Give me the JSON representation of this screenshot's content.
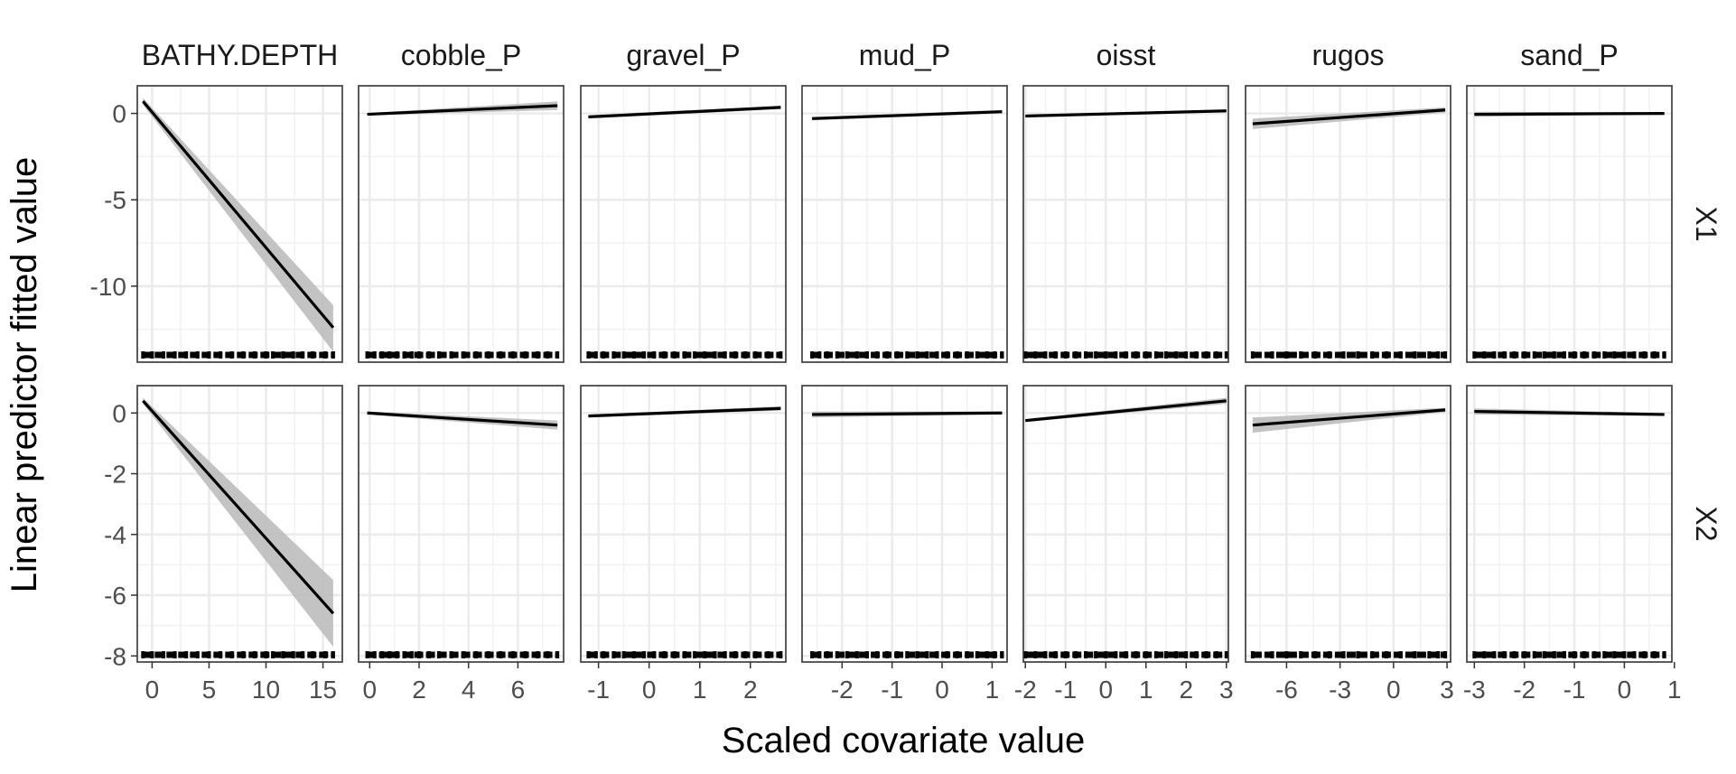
{
  "chart_data": {
    "type": "line",
    "xlabel": "Scaled covariate value",
    "ylabel": "Linear predictor fitted value",
    "facet_columns": [
      "BATHY.DEPTH",
      "cobble_P",
      "gravel_P",
      "mud_P",
      "oisst",
      "rugos",
      "sand_P"
    ],
    "facet_rows": [
      "X1",
      "X2"
    ],
    "grid": true,
    "rows": [
      {
        "label": "X1",
        "ylim": [
          -14.4,
          1.6
        ],
        "yticks": [
          0,
          -5,
          -10
        ]
      },
      {
        "label": "X2",
        "ylim": [
          -8.2,
          0.9
        ],
        "yticks": [
          0,
          -2,
          -4,
          -6,
          -8
        ]
      }
    ],
    "columns": [
      {
        "label": "BATHY.DEPTH",
        "xlim": [
          -1.3,
          16.7
        ],
        "xticks": [
          0,
          5,
          10,
          15
        ]
      },
      {
        "label": "cobble_P",
        "xlim": [
          -0.45,
          7.85
        ],
        "xticks": [
          0,
          2,
          4,
          6
        ]
      },
      {
        "label": "gravel_P",
        "xlim": [
          -1.35,
          2.7
        ],
        "xticks": [
          -1,
          0,
          1,
          2
        ]
      },
      {
        "label": "mud_P",
        "xlim": [
          -2.8,
          1.3
        ],
        "xticks": [
          -2,
          -1,
          0,
          1
        ]
      },
      {
        "label": "oisst",
        "xlim": [
          -2.05,
          3.05
        ],
        "xticks": [
          -2,
          -1,
          0,
          1,
          2,
          3
        ]
      },
      {
        "label": "rugos",
        "xlim": [
          -8.3,
          3.2
        ],
        "xticks": [
          -6,
          -3,
          0,
          3
        ]
      },
      {
        "label": "sand_P",
        "xlim": [
          -3.15,
          0.95
        ],
        "xticks": [
          -3,
          -2,
          -1,
          0,
          1
        ]
      }
    ],
    "panels": [
      {
        "row": "X1",
        "column": "BATHY.DEPTH",
        "x": [
          -0.8,
          15.9
        ],
        "fit": [
          0.7,
          -12.4
        ],
        "lower": [
          0.5,
          -13.8
        ],
        "upper": [
          0.9,
          -11.1
        ],
        "rug": [
          -0.8,
          0,
          1,
          2,
          3,
          4,
          5,
          6,
          7,
          8,
          9,
          10,
          10.6,
          11.5,
          12.4,
          13.2,
          14.1,
          15.2,
          15.9
        ]
      },
      {
        "row": "X1",
        "column": "cobble_P",
        "x": [
          -0.1,
          7.6
        ],
        "fit": [
          -0.05,
          0.45
        ],
        "lower": [
          -0.12,
          0.2
        ],
        "upper": [
          0.02,
          0.7
        ],
        "rug": [
          -0.1,
          0.2,
          0.5,
          0.8,
          1.1,
          1.4,
          1.7,
          2.0,
          2.4,
          2.8,
          3.3,
          3.8,
          4.3,
          4.8,
          5.3,
          5.8,
          6.3,
          6.8,
          7.2,
          7.6
        ]
      },
      {
        "row": "X1",
        "column": "gravel_P",
        "x": [
          -1.2,
          2.6
        ],
        "fit": [
          -0.2,
          0.35
        ],
        "lower": [
          -0.3,
          0.25
        ],
        "upper": [
          -0.1,
          0.45
        ],
        "rug": [
          -1.2,
          -1.05,
          -0.9,
          -0.7,
          -0.5,
          -0.3,
          -0.1,
          0.1,
          0.3,
          0.5,
          0.7,
          0.9,
          1.1,
          1.3,
          1.5,
          1.7,
          1.9,
          2.1,
          2.35,
          2.6
        ]
      },
      {
        "row": "X1",
        "column": "mud_P",
        "x": [
          -2.6,
          1.2
        ],
        "fit": [
          -0.3,
          0.1
        ],
        "lower": [
          -0.4,
          0.0
        ],
        "upper": [
          -0.2,
          0.2
        ],
        "rug": [
          -2.6,
          -2.45,
          -2.3,
          -2.1,
          -1.9,
          -1.7,
          -1.5,
          -1.3,
          -1.1,
          -0.9,
          -0.7,
          -0.5,
          -0.3,
          -0.1,
          0.1,
          0.3,
          0.5,
          0.7,
          0.9,
          1.05,
          1.2
        ]
      },
      {
        "row": "X1",
        "column": "oisst",
        "x": [
          -2.0,
          3.0
        ],
        "fit": [
          -0.15,
          0.15
        ],
        "lower": [
          -0.22,
          0.08
        ],
        "upper": [
          -0.08,
          0.22
        ],
        "rug": [
          -2.0,
          -1.75,
          -1.5,
          -1.25,
          -1.0,
          -0.75,
          -0.5,
          -0.25,
          0,
          0.25,
          0.5,
          0.75,
          1.0,
          1.25,
          1.5,
          1.75,
          2.0,
          2.25,
          2.5,
          2.75,
          3.0
        ]
      },
      {
        "row": "X1",
        "column": "rugos",
        "x": [
          -7.9,
          2.9
        ],
        "fit": [
          -0.6,
          0.2
        ],
        "lower": [
          -0.9,
          0.05
        ],
        "upper": [
          -0.3,
          0.35
        ],
        "rug": [
          -7.9,
          -6.8,
          -6.0,
          -5.2,
          -4.4,
          -3.6,
          -2.8,
          -2.0,
          -1.2,
          -0.4,
          0.4,
          1.2,
          2.0,
          2.5,
          2.9
        ]
      },
      {
        "row": "X1",
        "column": "sand_P",
        "x": [
          -3.0,
          0.8
        ],
        "fit": [
          -0.05,
          0.0
        ],
        "lower": [
          -0.2,
          -0.05
        ],
        "upper": [
          0.1,
          0.05
        ],
        "rug": [
          -3.0,
          -2.8,
          -2.6,
          -2.4,
          -2.2,
          -2.0,
          -1.8,
          -1.6,
          -1.4,
          -1.2,
          -1.0,
          -0.8,
          -0.6,
          -0.4,
          -0.2,
          0,
          0.2,
          0.4,
          0.6,
          0.8
        ]
      },
      {
        "row": "X2",
        "column": "BATHY.DEPTH",
        "x": [
          -0.8,
          15.9
        ],
        "fit": [
          0.4,
          -6.6
        ],
        "lower": [
          0.3,
          -7.7
        ],
        "upper": [
          0.5,
          -5.5
        ],
        "rug": [
          -0.8,
          0,
          1,
          2,
          3,
          4,
          5,
          6,
          7,
          8,
          9,
          10,
          10.6,
          11.5,
          12.4,
          13.2,
          14.1,
          15.2,
          15.9
        ]
      },
      {
        "row": "X2",
        "column": "cobble_P",
        "x": [
          -0.1,
          7.6
        ],
        "fit": [
          0.0,
          -0.4
        ],
        "lower": [
          -0.05,
          -0.55
        ],
        "upper": [
          0.05,
          -0.25
        ],
        "rug": [
          -0.1,
          0.2,
          0.5,
          0.8,
          1.1,
          1.4,
          1.7,
          2.0,
          2.4,
          2.8,
          3.3,
          3.8,
          4.3,
          4.8,
          5.3,
          5.8,
          6.3,
          6.8,
          7.2,
          7.6
        ]
      },
      {
        "row": "X2",
        "column": "gravel_P",
        "x": [
          -1.2,
          2.6
        ],
        "fit": [
          -0.1,
          0.15
        ],
        "lower": [
          -0.15,
          0.08
        ],
        "upper": [
          -0.05,
          0.22
        ],
        "rug": [
          -1.2,
          -1.05,
          -0.9,
          -0.7,
          -0.5,
          -0.3,
          -0.1,
          0.1,
          0.3,
          0.5,
          0.7,
          0.9,
          1.1,
          1.3,
          1.5,
          1.7,
          1.9,
          2.1,
          2.35,
          2.6
        ]
      },
      {
        "row": "X2",
        "column": "mud_P",
        "x": [
          -2.6,
          1.2
        ],
        "fit": [
          -0.05,
          0.0
        ],
        "lower": [
          -0.15,
          -0.05
        ],
        "upper": [
          0.05,
          0.05
        ],
        "rug": [
          -2.6,
          -2.45,
          -2.3,
          -2.1,
          -1.9,
          -1.7,
          -1.5,
          -1.3,
          -1.1,
          -0.9,
          -0.7,
          -0.5,
          -0.3,
          -0.1,
          0.1,
          0.3,
          0.5,
          0.7,
          0.9,
          1.05,
          1.2
        ]
      },
      {
        "row": "X2",
        "column": "oisst",
        "x": [
          -2.0,
          3.0
        ],
        "fit": [
          -0.25,
          0.4
        ],
        "lower": [
          -0.3,
          0.3
        ],
        "upper": [
          -0.2,
          0.5
        ],
        "rug": [
          -2.0,
          -1.75,
          -1.5,
          -1.25,
          -1.0,
          -0.75,
          -0.5,
          -0.25,
          0,
          0.25,
          0.5,
          0.75,
          1.0,
          1.25,
          1.5,
          1.75,
          2.0,
          2.25,
          2.5,
          2.75,
          3.0
        ]
      },
      {
        "row": "X2",
        "column": "rugos",
        "x": [
          -7.9,
          2.9
        ],
        "fit": [
          -0.4,
          0.1
        ],
        "lower": [
          -0.65,
          0.03
        ],
        "upper": [
          -0.15,
          0.17
        ],
        "rug": [
          -7.9,
          -6.8,
          -6.0,
          -5.2,
          -4.4,
          -3.6,
          -2.8,
          -2.0,
          -1.2,
          -0.4,
          0.4,
          1.2,
          2.0,
          2.5,
          2.9
        ]
      },
      {
        "row": "X2",
        "column": "sand_P",
        "x": [
          -3.0,
          0.8
        ],
        "fit": [
          0.05,
          -0.05
        ],
        "lower": [
          -0.05,
          -0.1
        ],
        "upper": [
          0.15,
          0.0
        ],
        "rug": [
          -3.0,
          -2.8,
          -2.6,
          -2.4,
          -2.2,
          -2.0,
          -1.8,
          -1.6,
          -1.4,
          -1.2,
          -1.0,
          -0.8,
          -0.6,
          -0.4,
          -0.2,
          0,
          0.2,
          0.4,
          0.6,
          0.8
        ]
      }
    ]
  }
}
